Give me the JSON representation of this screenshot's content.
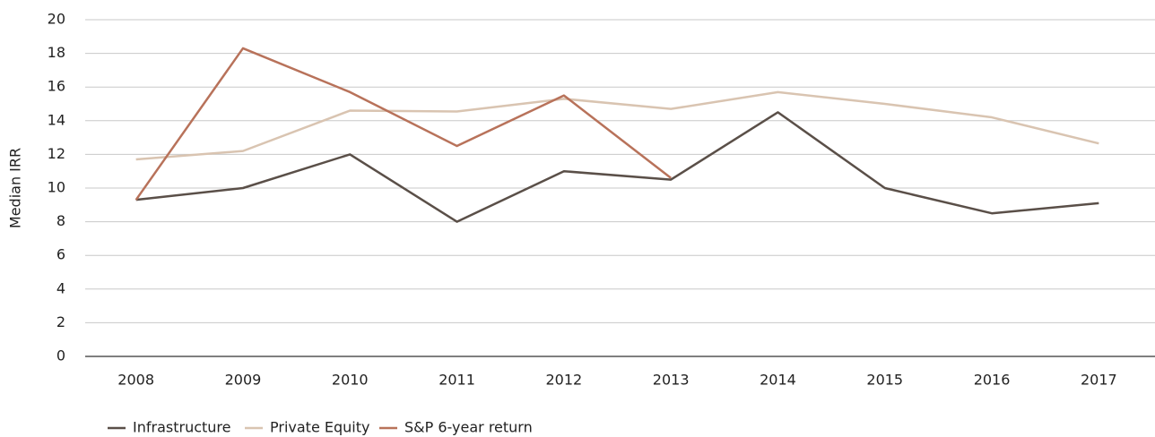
{
  "chart_data": {
    "type": "line",
    "y_label": "Median IRR",
    "categories": [
      "2008",
      "2009",
      "2010",
      "2011",
      "2012",
      "2013",
      "2014",
      "2015",
      "2016",
      "2017"
    ],
    "series": [
      {
        "name": "Infrastructure",
        "color": "#5a4f48",
        "values": [
          9.3,
          10.0,
          12.0,
          8.0,
          11.0,
          10.5,
          14.5,
          10.0,
          8.5,
          9.1
        ]
      },
      {
        "name": "Private Equity",
        "color": "#d9c4b1",
        "values": [
          11.7,
          12.2,
          14.6,
          14.55,
          15.3,
          14.7,
          15.7,
          15.0,
          14.2,
          12.65
        ]
      },
      {
        "name": "S&P 6-year return",
        "color": "#b8725a",
        "values": [
          9.3,
          18.3,
          15.7,
          12.5,
          15.5,
          10.6,
          null,
          null,
          null,
          null
        ]
      }
    ],
    "ylim": [
      0,
      20
    ],
    "yticks": [
      0,
      2,
      4,
      6,
      8,
      10,
      12,
      14,
      16,
      18,
      20
    ],
    "grid": true,
    "legend": "bottom-left"
  }
}
